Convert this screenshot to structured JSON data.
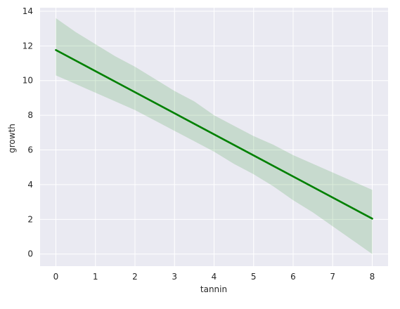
{
  "chart_data": {
    "type": "line",
    "xlabel": "tannin",
    "ylabel": "growth",
    "xlim": [
      -0.4,
      8.4
    ],
    "ylim": [
      -0.7,
      14.2
    ],
    "x_ticks": [
      0,
      1,
      2,
      3,
      4,
      5,
      6,
      7,
      8
    ],
    "y_ticks": [
      0,
      2,
      4,
      6,
      8,
      10,
      12,
      14
    ],
    "grid": true,
    "background": "#eaeaf2",
    "series": [
      {
        "line_color": "#008000",
        "band_color": "#008000",
        "x": [
          0,
          8
        ],
        "y": [
          11.76,
          2.04
        ],
        "band": {
          "x": [
            0,
            0.5,
            1,
            1.5,
            2,
            2.5,
            3,
            3.5,
            4,
            4.5,
            5,
            5.5,
            6,
            6.5,
            7,
            7.5,
            8
          ],
          "upper": [
            13.6,
            12.8,
            12.1,
            11.4,
            10.8,
            10.1,
            9.4,
            8.8,
            8.0,
            7.4,
            6.8,
            6.3,
            5.7,
            5.2,
            4.7,
            4.2,
            3.7
          ],
          "lower": [
            10.3,
            9.8,
            9.3,
            8.8,
            8.3,
            7.7,
            7.1,
            6.5,
            5.9,
            5.2,
            4.6,
            3.9,
            3.1,
            2.4,
            1.6,
            0.8,
            0.0
          ]
        }
      }
    ]
  }
}
